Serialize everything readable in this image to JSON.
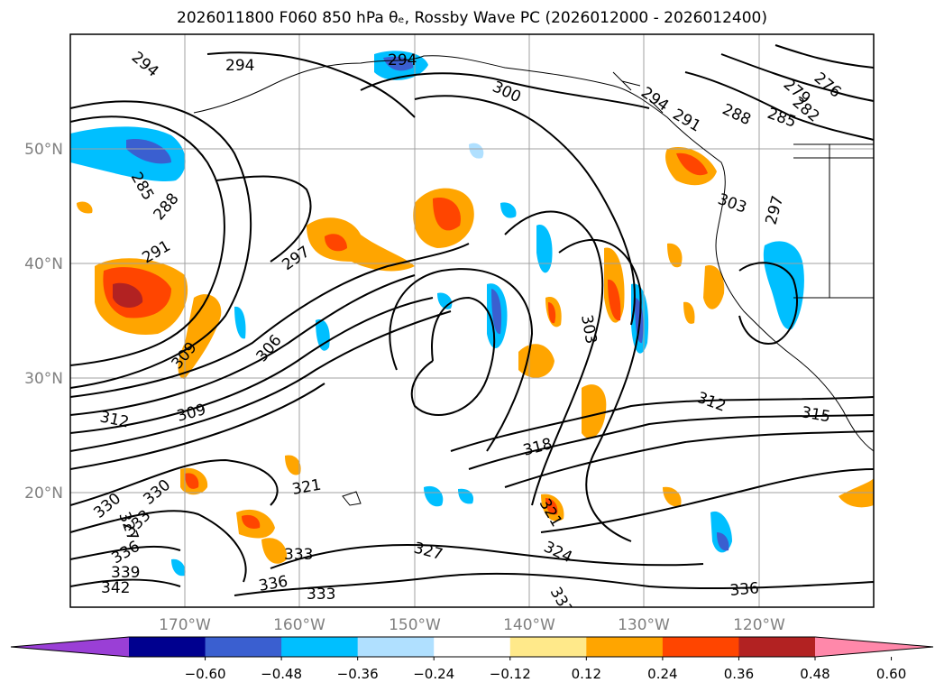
{
  "title": "2026011800 F060 850 hPa θₑ, Rossby Wave PC (2026012000 - 2026012400)",
  "map": {
    "lon_labels": [
      "170°W",
      "160°W",
      "150°W",
      "140°W",
      "130°W",
      "120°W"
    ],
    "lat_labels": [
      "50°N",
      "40°N",
      "30°N",
      "20°N"
    ],
    "contour_labels": [
      {
        "text": "294"
      },
      {
        "text": "294"
      },
      {
        "text": "294"
      },
      {
        "text": "300"
      },
      {
        "text": "294"
      },
      {
        "text": "291"
      },
      {
        "text": "288"
      },
      {
        "text": "285"
      },
      {
        "text": "282"
      },
      {
        "text": "279"
      },
      {
        "text": "276"
      },
      {
        "text": "285"
      },
      {
        "text": "288"
      },
      {
        "text": "291"
      },
      {
        "text": "297"
      },
      {
        "text": "303"
      },
      {
        "text": "297"
      },
      {
        "text": "306"
      },
      {
        "text": "309"
      },
      {
        "text": "303"
      },
      {
        "text": "312"
      },
      {
        "text": "309"
      },
      {
        "text": "312"
      },
      {
        "text": "318"
      },
      {
        "text": "321"
      },
      {
        "text": "321"
      },
      {
        "text": "330"
      },
      {
        "text": "330"
      },
      {
        "text": "327"
      },
      {
        "text": "333"
      },
      {
        "text": "336"
      },
      {
        "text": "339"
      },
      {
        "text": "342"
      },
      {
        "text": "333"
      },
      {
        "text": "336"
      },
      {
        "text": "333"
      },
      {
        "text": "327"
      },
      {
        "text": "324"
      },
      {
        "text": "333"
      },
      {
        "text": "336"
      },
      {
        "text": "315"
      }
    ]
  },
  "colorbar": {
    "colors": [
      "#9a3fd6",
      "#00008f",
      "#3a5fd0",
      "#00bfff",
      "#b0e0ff",
      "#ffffff",
      "#ffe98a",
      "#ffa500",
      "#ff4500",
      "#b22222",
      "#ff88aa"
    ],
    "labels": [
      "−0.60",
      "−0.48",
      "−0.36",
      "−0.24",
      "−0.12",
      "0.12",
      "0.24",
      "0.36",
      "0.48",
      "0.60"
    ]
  }
}
